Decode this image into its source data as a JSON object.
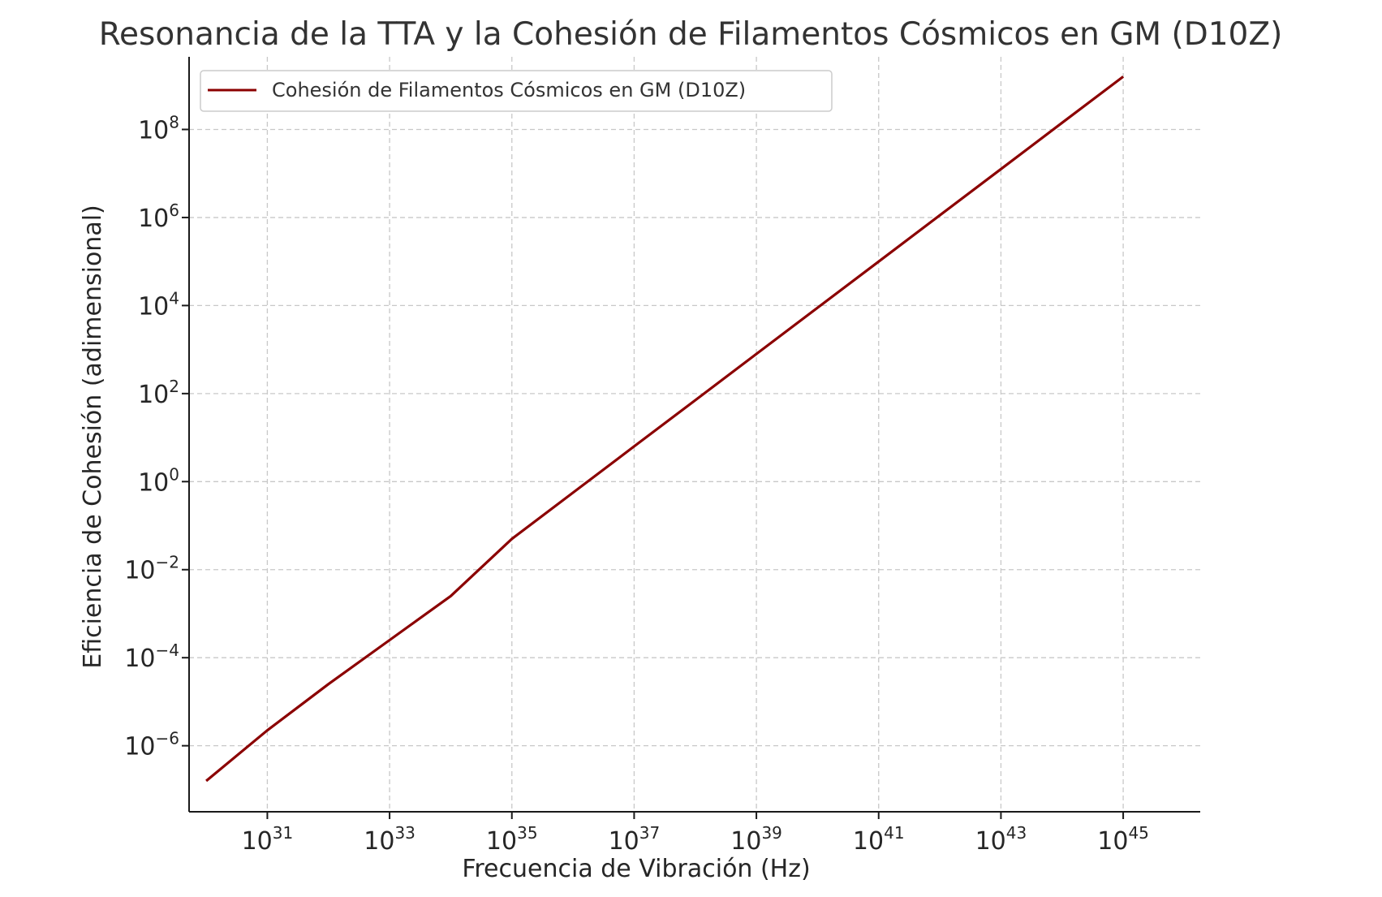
{
  "chart_data": {
    "type": "line",
    "title": "Resonancia de la TTA y la Cohesión de Filamentos Cósmicos en GM (D10Z)",
    "xlabel": "Frecuencia de Vibración (Hz)",
    "ylabel": "Eficiencia de Cohesión (adimensional)",
    "x_scale": "log",
    "y_scale": "log",
    "xlim_log10": [
      29.72,
      46.26
    ],
    "ylim_log10": [
      -7.5,
      9.65
    ],
    "x_ticks": [
      {
        "base": "10",
        "exp": "31",
        "value": 31
      },
      {
        "base": "10",
        "exp": "33",
        "value": 33
      },
      {
        "base": "10",
        "exp": "35",
        "value": 35
      },
      {
        "base": "10",
        "exp": "37",
        "value": 37
      },
      {
        "base": "10",
        "exp": "39",
        "value": 39
      },
      {
        "base": "10",
        "exp": "41",
        "value": 41
      },
      {
        "base": "10",
        "exp": "43",
        "value": 43
      },
      {
        "base": "10",
        "exp": "45",
        "value": 45
      }
    ],
    "y_ticks": [
      {
        "base": "10",
        "exp": "−6",
        "value": -6
      },
      {
        "base": "10",
        "exp": "−4",
        "value": -4
      },
      {
        "base": "10",
        "exp": "−2",
        "value": -2
      },
      {
        "base": "10",
        "exp": "0",
        "value": 0
      },
      {
        "base": "10",
        "exp": "2",
        "value": 2
      },
      {
        "base": "10",
        "exp": "4",
        "value": 4
      },
      {
        "base": "10",
        "exp": "6",
        "value": 6
      },
      {
        "base": "10",
        "exp": "8",
        "value": 8
      }
    ],
    "grid": true,
    "legend_position": "top-left",
    "series": [
      {
        "name": "Cohesión de Filamentos Cósmicos en GM (D10Z)",
        "color": "#8b0000",
        "log10_x": [
          30,
          31,
          32,
          33,
          34,
          35,
          36,
          37,
          38,
          39,
          40,
          41,
          42,
          43,
          44,
          45
        ],
        "log10_y": [
          -6.8,
          -5.65,
          -4.6,
          -3.6,
          -2.6,
          -1.3,
          -0.25,
          0.8,
          1.85,
          2.9,
          3.95,
          5.0,
          6.05,
          7.1,
          8.15,
          9.2
        ]
      }
    ]
  }
}
